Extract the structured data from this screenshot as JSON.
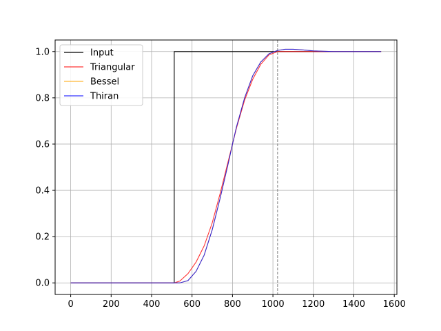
{
  "chart_data": {
    "type": "line",
    "xlim": [
      -77,
      1613
    ],
    "ylim": [
      -0.05,
      1.05
    ],
    "xticks": [
      0,
      200,
      400,
      600,
      800,
      1000,
      1200,
      1400,
      1600
    ],
    "xtick_labels": [
      "0",
      "200",
      "400",
      "600",
      "800",
      "1000",
      "1200",
      "1400",
      "1600"
    ],
    "yticks": [
      0.0,
      0.2,
      0.4,
      0.6,
      0.8,
      1.0
    ],
    "ytick_labels": [
      "0.0",
      "0.2",
      "0.4",
      "0.6",
      "0.8",
      "1.0"
    ],
    "grid": true,
    "legend_position": "upper-left",
    "vline": {
      "x": 1023,
      "style": "dashed",
      "color": "#808080"
    },
    "series": [
      {
        "name": "Input",
        "color": "#000000",
        "x": [
          0,
          512,
          512,
          1535
        ],
        "y": [
          0,
          0,
          1,
          1
        ]
      },
      {
        "name": "Triangular",
        "color": "#ff0000",
        "x": [
          0,
          512,
          540,
          580,
          620,
          660,
          700,
          740,
          780,
          800,
          820,
          860,
          900,
          940,
          980,
          1023,
          1060,
          1100,
          1200,
          1300,
          1535
        ],
        "y": [
          0,
          0,
          0.008,
          0.04,
          0.09,
          0.16,
          0.26,
          0.39,
          0.53,
          0.6,
          0.67,
          0.79,
          0.88,
          0.945,
          0.985,
          1.0,
          1.0,
          1.0,
          1.0,
          1.0,
          1.0
        ]
      },
      {
        "name": "Bessel",
        "color": "#ffa500",
        "x": [
          0,
          512,
          540,
          580,
          620,
          660,
          700,
          740,
          780,
          800,
          820,
          860,
          900,
          940,
          980,
          1023,
          1060,
          1100,
          1150,
          1200,
          1300,
          1400,
          1535
        ],
        "y": [
          0,
          0,
          0.0,
          0.01,
          0.05,
          0.12,
          0.23,
          0.37,
          0.52,
          0.6,
          0.675,
          0.8,
          0.895,
          0.955,
          0.99,
          1.005,
          1.01,
          1.01,
          1.007,
          1.003,
          1.0,
          1.0,
          1.0
        ]
      },
      {
        "name": "Thiran",
        "color": "#0000ff",
        "x": [
          0,
          512,
          540,
          580,
          620,
          660,
          700,
          740,
          780,
          800,
          820,
          860,
          900,
          940,
          980,
          1023,
          1060,
          1100,
          1150,
          1200,
          1300,
          1400,
          1535
        ],
        "y": [
          0,
          0,
          0.0,
          0.01,
          0.05,
          0.12,
          0.23,
          0.37,
          0.52,
          0.6,
          0.675,
          0.8,
          0.895,
          0.955,
          0.99,
          1.005,
          1.01,
          1.01,
          1.007,
          1.003,
          1.0,
          1.0,
          1.0
        ]
      }
    ]
  }
}
